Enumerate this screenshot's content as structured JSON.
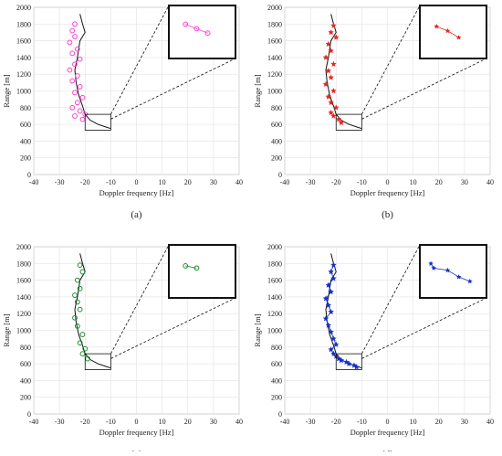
{
  "panels": [
    {
      "id": "a",
      "caption": "(a)",
      "color": "#ff3fd2",
      "marker": "circle"
    },
    {
      "id": "b",
      "caption": "(b)",
      "color": "#e5261f",
      "marker": "star"
    },
    {
      "id": "c",
      "caption": "(c)",
      "color": "#1a8c2e",
      "marker": "circle"
    },
    {
      "id": "d",
      "caption": "(d)",
      "color": "#1530c8",
      "marker": "star"
    }
  ],
  "chart_data": [
    {
      "type": "scatter",
      "panel": "a",
      "xlabel": "Doppler frequency [Hz]",
      "ylabel": "Range [m]",
      "xlim": [
        -40,
        40
      ],
      "ylim": [
        0,
        2000
      ],
      "xticks": [
        -40,
        -30,
        -20,
        -10,
        0,
        10,
        20,
        30,
        40
      ],
      "yticks": [
        0,
        200,
        400,
        600,
        800,
        1000,
        1200,
        1400,
        1600,
        1800,
        2000
      ],
      "grid": true,
      "reference_track": {
        "x": [
          -22,
          -21,
          -20,
          -22,
          -23,
          -24,
          -23.5,
          -22.5,
          -21,
          -20,
          -18,
          -15,
          -12,
          -10
        ],
        "y": [
          1920,
          1800,
          1700,
          1600,
          1400,
          1250,
          1100,
          950,
          820,
          720,
          650,
          600,
          570,
          550
        ]
      },
      "series": [
        {
          "x": [
            -24,
            -25,
            -24,
            -26,
            -23,
            -25,
            -22,
            -24,
            -26,
            -23,
            -25,
            -22,
            -24,
            -21,
            -23,
            -25,
            -22,
            -20,
            -24,
            -21
          ],
          "y": [
            1800,
            1720,
            1650,
            1580,
            1500,
            1450,
            1380,
            1320,
            1250,
            1180,
            1120,
            1050,
            980,
            920,
            860,
            800,
            760,
            720,
            700,
            660
          ]
        }
      ],
      "zoom_box": {
        "x": [
          -20,
          -10
        ],
        "y": [
          530,
          720
        ]
      },
      "zoom_series": {
        "x": [
          -18,
          -16,
          -14
        ],
        "y": [
          660,
          640,
          620
        ]
      }
    },
    {
      "type": "scatter",
      "panel": "b",
      "xlabel": "Doppler frequency [Hz]",
      "ylabel": "Range [m]",
      "xlim": [
        -40,
        40
      ],
      "ylim": [
        0,
        2000
      ],
      "xticks": [
        -40,
        -30,
        -20,
        -10,
        0,
        10,
        20,
        30,
        40
      ],
      "yticks": [
        0,
        200,
        400,
        600,
        800,
        1000,
        1200,
        1400,
        1600,
        1800,
        2000
      ],
      "grid": true,
      "reference_track": {
        "x": [
          -22,
          -21,
          -20,
          -22,
          -23,
          -24,
          -23.5,
          -22.5,
          -21,
          -20,
          -18,
          -15,
          -12,
          -10
        ],
        "y": [
          1920,
          1800,
          1700,
          1600,
          1400,
          1250,
          1100,
          950,
          820,
          720,
          650,
          600,
          570,
          550
        ]
      },
      "series": [
        {
          "x": [
            -21,
            -22,
            -20,
            -23,
            -22,
            -24,
            -21,
            -23,
            -22,
            -24,
            -21,
            -23,
            -22,
            -20,
            -22,
            -21,
            -19,
            -18
          ],
          "y": [
            1780,
            1700,
            1640,
            1560,
            1480,
            1400,
            1320,
            1240,
            1160,
            1080,
            1000,
            930,
            860,
            800,
            740,
            700,
            660,
            620
          ]
        }
      ],
      "zoom_box": {
        "x": [
          -20,
          -10
        ],
        "y": [
          530,
          720
        ]
      },
      "zoom_series": {
        "x": [
          -18,
          -16,
          -14
        ],
        "y": [
          650,
          630,
          600
        ]
      }
    },
    {
      "type": "scatter",
      "panel": "c",
      "xlabel": "Doppler frequency [Hz]",
      "ylabel": "Range [m]",
      "xlim": [
        -40,
        40
      ],
      "ylim": [
        0,
        2000
      ],
      "xticks": [
        -40,
        -30,
        -20,
        -10,
        0,
        10,
        20,
        30,
        40
      ],
      "yticks": [
        0,
        200,
        400,
        600,
        800,
        1000,
        1200,
        1400,
        1600,
        1800,
        2000
      ],
      "grid": true,
      "reference_track": {
        "x": [
          -22,
          -21,
          -20,
          -22,
          -23,
          -24,
          -23.5,
          -22.5,
          -21,
          -20,
          -18,
          -15,
          -12,
          -10
        ],
        "y": [
          1920,
          1800,
          1700,
          1600,
          1400,
          1250,
          1100,
          950,
          820,
          720,
          650,
          600,
          570,
          550
        ]
      },
      "series": [
        {
          "x": [
            -22,
            -21,
            -23,
            -22,
            -24,
            -23,
            -22,
            -24,
            -23,
            -21,
            -22,
            -20,
            -21,
            -19
          ],
          "y": [
            1780,
            1700,
            1600,
            1500,
            1420,
            1340,
            1250,
            1150,
            1050,
            950,
            850,
            780,
            720,
            660
          ]
        }
      ],
      "zoom_box": {
        "x": [
          -20,
          -10
        ],
        "y": [
          530,
          720
        ]
      },
      "zoom_series": {
        "x": [
          -18,
          -16
        ],
        "y": [
          650,
          640
        ]
      }
    },
    {
      "type": "scatter",
      "panel": "d",
      "xlabel": "Doppler frequency [Hz]",
      "ylabel": "Range [m]",
      "xlim": [
        -40,
        40
      ],
      "ylim": [
        0,
        2000
      ],
      "xticks": [
        -40,
        -30,
        -20,
        -10,
        0,
        10,
        20,
        30,
        40
      ],
      "yticks": [
        0,
        200,
        400,
        600,
        800,
        1000,
        1200,
        1400,
        1600,
        1800,
        2000
      ],
      "grid": true,
      "reference_track": {
        "x": [
          -22,
          -21,
          -20,
          -22,
          -23,
          -24,
          -23.5,
          -22.5,
          -21,
          -20,
          -18,
          -15,
          -12,
          -10
        ],
        "y": [
          1920,
          1800,
          1700,
          1600,
          1400,
          1250,
          1100,
          950,
          820,
          720,
          650,
          600,
          570,
          550
        ]
      },
      "series": [
        {
          "x": [
            -21,
            -22,
            -21,
            -23,
            -22,
            -24,
            -23,
            -22,
            -24,
            -23,
            -22,
            -21,
            -20,
            -22,
            -21,
            -20,
            -19,
            -18,
            -16,
            -15,
            -13,
            -12
          ],
          "y": [
            1780,
            1700,
            1620,
            1540,
            1460,
            1380,
            1300,
            1220,
            1140,
            1060,
            980,
            900,
            830,
            770,
            720,
            690,
            660,
            640,
            620,
            600,
            580,
            560
          ]
        }
      ],
      "zoom_box": {
        "x": [
          -20,
          -10
        ],
        "y": [
          530,
          720
        ]
      },
      "zoom_series": {
        "x": [
          -19,
          -18.5,
          -16,
          -14,
          -12
        ],
        "y": [
          660,
          640,
          630,
          600,
          580
        ]
      }
    }
  ]
}
